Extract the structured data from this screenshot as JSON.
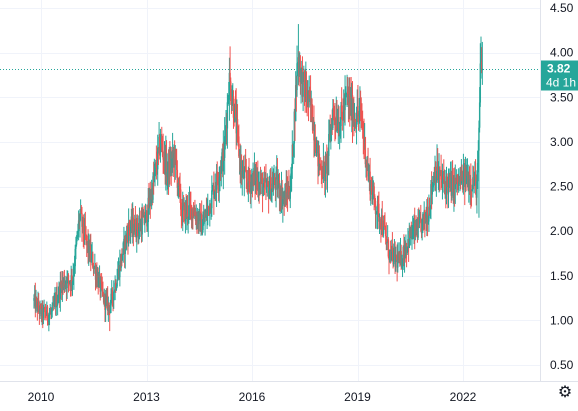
{
  "colors": {
    "up": "#26a69a",
    "down": "#ef5350",
    "grid": "#f0f3fa",
    "axis_text": "#131722",
    "price_line": "#26a69a",
    "price_tag_bg": "#26a69a"
  },
  "price_tag": {
    "value": "3.82",
    "countdown": "4d 1h"
  },
  "settings_icon": "gear-icon",
  "chart_data": {
    "type": "candlestick",
    "title": "",
    "xlabel": "",
    "ylabel": "",
    "ylim": [
      0.3,
      4.55
    ],
    "xlim": [
      2009.3,
      2024.2
    ],
    "y_ticks": [
      "0.50",
      "1.00",
      "1.50",
      "2.00",
      "2.50",
      "3.00",
      "3.50",
      "4.00",
      "4.50"
    ],
    "x_ticks": [
      "2010",
      "2013",
      "2016",
      "2019",
      "2022"
    ],
    "last_price": 3.82,
    "grid": true,
    "price_anchors": [
      [
        2009.8,
        1.22
      ],
      [
        2010.0,
        1.08
      ],
      [
        2010.3,
        1.07
      ],
      [
        2010.6,
        1.42
      ],
      [
        2010.9,
        1.47
      ],
      [
        2011.1,
        2.18
      ],
      [
        2011.3,
        1.85
      ],
      [
        2011.5,
        1.62
      ],
      [
        2011.8,
        1.22
      ],
      [
        2011.95,
        1.15
      ],
      [
        2012.2,
        1.55
      ],
      [
        2012.5,
        2.05
      ],
      [
        2012.8,
        2.05
      ],
      [
        2013.0,
        2.15
      ],
      [
        2013.2,
        2.55
      ],
      [
        2013.4,
        3.0
      ],
      [
        2013.6,
        2.65
      ],
      [
        2013.8,
        2.85
      ],
      [
        2014.0,
        2.2
      ],
      [
        2014.3,
        2.25
      ],
      [
        2014.6,
        2.05
      ],
      [
        2014.9,
        2.45
      ],
      [
        2015.2,
        2.85
      ],
      [
        2015.35,
        3.7
      ],
      [
        2015.5,
        3.35
      ],
      [
        2015.7,
        2.65
      ],
      [
        2015.9,
        2.55
      ],
      [
        2016.1,
        2.6
      ],
      [
        2016.4,
        2.45
      ],
      [
        2016.7,
        2.55
      ],
      [
        2016.9,
        2.35
      ],
      [
        2017.1,
        2.5
      ],
      [
        2017.3,
        3.95
      ],
      [
        2017.45,
        3.65
      ],
      [
        2017.7,
        3.35
      ],
      [
        2017.9,
        2.75
      ],
      [
        2018.1,
        2.65
      ],
      [
        2018.3,
        3.35
      ],
      [
        2018.5,
        3.2
      ],
      [
        2018.7,
        3.5
      ],
      [
        2018.9,
        3.3
      ],
      [
        2019.1,
        3.3
      ],
      [
        2019.3,
        2.65
      ],
      [
        2019.5,
        2.3
      ],
      [
        2019.7,
        2.1
      ],
      [
        2019.9,
        1.75
      ],
      [
        2020.2,
        1.65
      ],
      [
        2020.5,
        1.95
      ],
      [
        2020.8,
        2.05
      ],
      [
        2021.0,
        2.2
      ],
      [
        2021.2,
        2.7
      ],
      [
        2021.4,
        2.55
      ],
      [
        2021.7,
        2.5
      ],
      [
        2021.9,
        2.55
      ],
      [
        2022.1,
        2.6
      ],
      [
        2022.3,
        2.55
      ],
      [
        2022.4,
        2.5
      ],
      [
        2022.45,
        3.0
      ],
      [
        2022.5,
        3.9
      ],
      [
        2022.55,
        3.82
      ]
    ]
  }
}
